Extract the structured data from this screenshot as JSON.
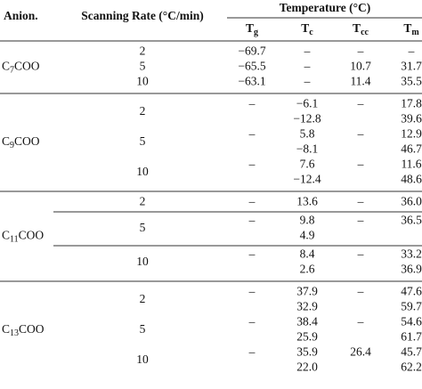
{
  "header": {
    "anion": "Anion.",
    "rate": "Scanning Rate (°C/min)",
    "temperature": "Temperature (°C)",
    "columns": [
      {
        "main": "T",
        "sub": "g"
      },
      {
        "main": "T",
        "sub": "c"
      },
      {
        "main": "T",
        "sub": "cc"
      },
      {
        "main": "T",
        "sub": "m"
      }
    ]
  },
  "groups": [
    {
      "anion": {
        "prefix": "C",
        "sub": "7",
        "suffix": "COO"
      },
      "row_rules": false,
      "rows": [
        {
          "rate": "2",
          "cells": [
            [
              "−69.7"
            ],
            [
              "–"
            ],
            [
              "–"
            ],
            [
              "–"
            ]
          ]
        },
        {
          "rate": "5",
          "cells": [
            [
              "−65.5"
            ],
            [
              "–"
            ],
            [
              "10.7"
            ],
            [
              "31.7"
            ]
          ]
        },
        {
          "rate": "10",
          "cells": [
            [
              "−63.1"
            ],
            [
              "–"
            ],
            [
              "11.4"
            ],
            [
              "35.5"
            ]
          ]
        }
      ]
    },
    {
      "anion": {
        "prefix": "C",
        "sub": "9",
        "suffix": "COO"
      },
      "row_rules": false,
      "rows": [
        {
          "rate": "2",
          "cells": [
            [
              "–"
            ],
            [
              "−6.1",
              "−12.8"
            ],
            [
              "–"
            ],
            [
              "17.8",
              "39.6"
            ]
          ]
        },
        {
          "rate": "5",
          "cells": [
            [
              "–"
            ],
            [
              "5.8",
              "−8.1"
            ],
            [
              "–"
            ],
            [
              "12.9",
              "46.7"
            ]
          ]
        },
        {
          "rate": "10",
          "cells": [
            [
              "–"
            ],
            [
              "7.6",
              "−12.4"
            ],
            [
              "–"
            ],
            [
              "11.6",
              "48.6"
            ]
          ]
        }
      ]
    },
    {
      "anion": {
        "prefix": "C",
        "sub": "11",
        "suffix": "COO"
      },
      "row_rules": true,
      "rows": [
        {
          "rate": "2",
          "cells": [
            [
              "–"
            ],
            [
              "13.6"
            ],
            [
              "–"
            ],
            [
              "36.0"
            ]
          ]
        },
        {
          "rate": "5",
          "cells": [
            [
              "–"
            ],
            [
              "9.8",
              "4.9"
            ],
            [
              "–"
            ],
            [
              "36.5"
            ]
          ]
        },
        {
          "rate": "10",
          "cells": [
            [
              "–"
            ],
            [
              "8.4",
              "2.6"
            ],
            [
              "–"
            ],
            [
              "33.2",
              "36.9"
            ]
          ]
        }
      ]
    },
    {
      "anion": {
        "prefix": "C",
        "sub": "13",
        "suffix": "COO"
      },
      "row_rules": false,
      "rows": [
        {
          "rate": "2",
          "cells": [
            [
              "–"
            ],
            [
              "37.9",
              "32.9"
            ],
            [
              "–"
            ],
            [
              "47.6",
              "59.7"
            ]
          ]
        },
        {
          "rate": "5",
          "cells": [
            [
              "–"
            ],
            [
              "38.4",
              "25.9"
            ],
            [
              "–"
            ],
            [
              "54.6",
              "61.7"
            ]
          ]
        },
        {
          "rate": "10",
          "cells": [
            [
              "–"
            ],
            [
              "35.9",
              "22.0"
            ],
            [
              "26.4"
            ],
            [
              "45.7",
              "62.2"
            ]
          ]
        }
      ]
    }
  ]
}
